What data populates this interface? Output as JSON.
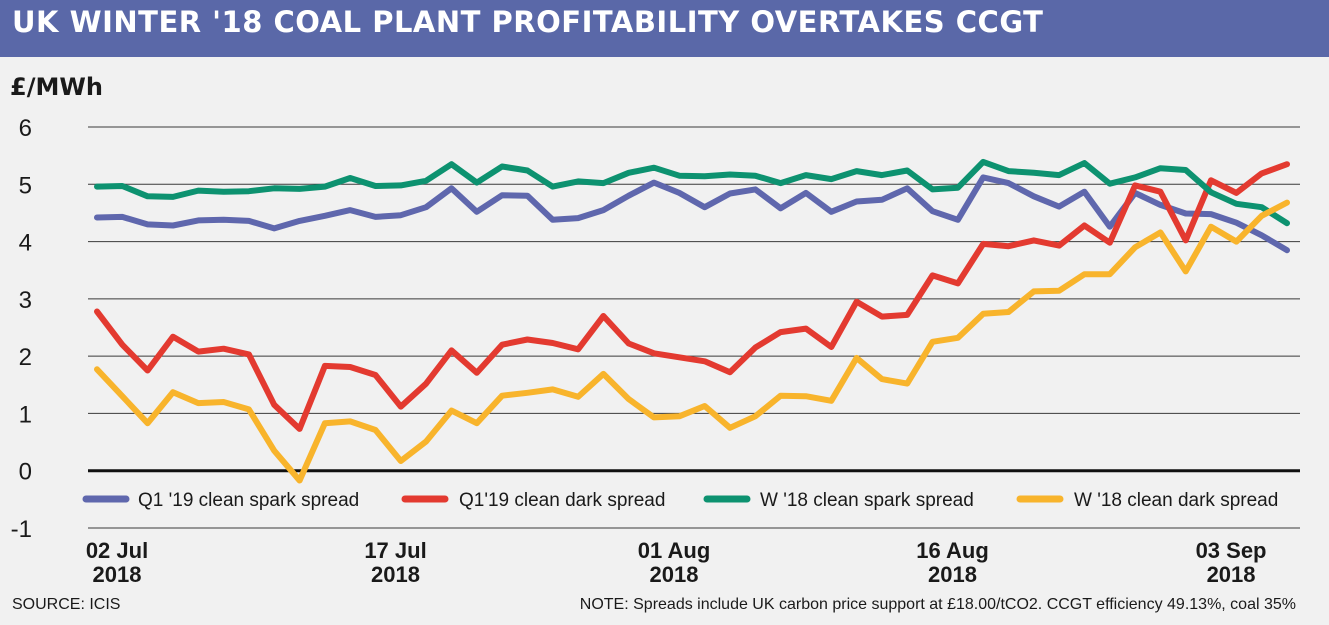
{
  "header": {
    "title": "UK WINTER '18 COAL PLANT PROFITABILITY OVERTAKES CCGT"
  },
  "footer": {
    "source": "SOURCE: ICIS",
    "note": "NOTE: Spreads include UK carbon price support at £18.00/tCO2. CCGT efficiency 49.13%, coal 35%"
  },
  "chart_data": {
    "type": "line",
    "title": "UK WINTER '18 COAL PLANT PROFITABILITY OVERTAKES CCGT",
    "ylabel": "£/MWh",
    "ylim": [
      -1,
      6
    ],
    "yticks": [
      6,
      5,
      4,
      3,
      2,
      1,
      0,
      -1
    ],
    "grid": true,
    "legend": "bottom",
    "x_tick_labels": [
      {
        "index": 0,
        "line1": "02 Jul",
        "line2": "2018"
      },
      {
        "index": 11,
        "line1": "17 Jul",
        "line2": "2018"
      },
      {
        "index": 22,
        "line1": "01 Aug",
        "line2": "2018"
      },
      {
        "index": 33,
        "line1": "16 Aug",
        "line2": "2018"
      },
      {
        "index": 44,
        "line1": "03 Sep",
        "line2": "2018"
      }
    ],
    "x": [
      "2018-07-02",
      "2018-07-03",
      "2018-07-04",
      "2018-07-05",
      "2018-07-06",
      "2018-07-09",
      "2018-07-10",
      "2018-07-11",
      "2018-07-12",
      "2018-07-13",
      "2018-07-16",
      "2018-07-17",
      "2018-07-18",
      "2018-07-19",
      "2018-07-20",
      "2018-07-23",
      "2018-07-24",
      "2018-07-25",
      "2018-07-26",
      "2018-07-27",
      "2018-07-30",
      "2018-07-31",
      "2018-08-01",
      "2018-08-02",
      "2018-08-03",
      "2018-08-06",
      "2018-08-07",
      "2018-08-08",
      "2018-08-09",
      "2018-08-10",
      "2018-08-13",
      "2018-08-14",
      "2018-08-15",
      "2018-08-16",
      "2018-08-17",
      "2018-08-20",
      "2018-08-21",
      "2018-08-22",
      "2018-08-23",
      "2018-08-24",
      "2018-08-28",
      "2018-08-29",
      "2018-08-30",
      "2018-08-31",
      "2018-09-03",
      "2018-09-04",
      "2018-09-05",
      "2018-09-06"
    ],
    "series": [
      {
        "name": "Q1 '19 clean spark spread",
        "color": "#5f67ad",
        "values": [
          4.42,
          4.43,
          4.3,
          4.28,
          4.37,
          4.38,
          4.36,
          4.23,
          4.36,
          4.45,
          4.55,
          4.43,
          4.46,
          4.6,
          4.93,
          4.52,
          4.81,
          4.8,
          4.38,
          4.41,
          4.55,
          4.8,
          5.03,
          4.85,
          4.6,
          4.84,
          4.91,
          4.58,
          4.85,
          4.52,
          4.7,
          4.73,
          4.93,
          4.53,
          4.38,
          5.12,
          5.02,
          4.79,
          4.61,
          4.87,
          4.26,
          4.85,
          4.64,
          4.49,
          4.48,
          4.33,
          4.11,
          3.85
        ]
      },
      {
        "name": "Q1'19 clean dark spread",
        "color": "#e33a30",
        "values": [
          2.78,
          2.2,
          1.75,
          2.34,
          2.08,
          2.13,
          2.03,
          1.15,
          0.73,
          1.83,
          1.81,
          1.67,
          1.12,
          1.52,
          2.1,
          1.71,
          2.2,
          2.29,
          2.23,
          2.12,
          2.7,
          2.22,
          2.05,
          1.98,
          1.91,
          1.72,
          2.15,
          2.42,
          2.48,
          2.16,
          2.95,
          2.69,
          2.72,
          3.41,
          3.27,
          3.96,
          3.92,
          4.02,
          3.93,
          4.28,
          3.98,
          4.98,
          4.87,
          4.02,
          5.07,
          4.85,
          5.19,
          5.35
        ]
      },
      {
        "name": "W '18 clean spark spread",
        "color": "#0d9270",
        "values": [
          4.96,
          4.97,
          4.79,
          4.78,
          4.89,
          4.87,
          4.88,
          4.93,
          4.92,
          4.96,
          5.11,
          4.97,
          4.98,
          5.06,
          5.35,
          5.03,
          5.31,
          5.24,
          4.96,
          5.05,
          5.02,
          5.2,
          5.29,
          5.15,
          5.14,
          5.17,
          5.15,
          5.02,
          5.16,
          5.09,
          5.23,
          5.16,
          5.24,
          4.91,
          4.94,
          5.39,
          5.23,
          5.2,
          5.16,
          5.37,
          5.01,
          5.12,
          5.28,
          5.25,
          4.86,
          4.66,
          4.6,
          4.32
        ]
      },
      {
        "name": "W '18 clean dark spread",
        "color": "#f8b42c",
        "values": [
          1.77,
          1.3,
          0.83,
          1.37,
          1.18,
          1.2,
          1.07,
          0.35,
          -0.17,
          0.83,
          0.86,
          0.71,
          0.17,
          0.51,
          1.05,
          0.83,
          1.31,
          1.36,
          1.42,
          1.29,
          1.69,
          1.25,
          0.93,
          0.95,
          1.13,
          0.75,
          0.95,
          1.31,
          1.3,
          1.22,
          1.97,
          1.6,
          1.52,
          2.25,
          2.32,
          2.74,
          2.77,
          3.13,
          3.14,
          3.43,
          3.43,
          3.9,
          4.16,
          3.48,
          4.26,
          4.0,
          4.45,
          4.68
        ]
      }
    ]
  }
}
